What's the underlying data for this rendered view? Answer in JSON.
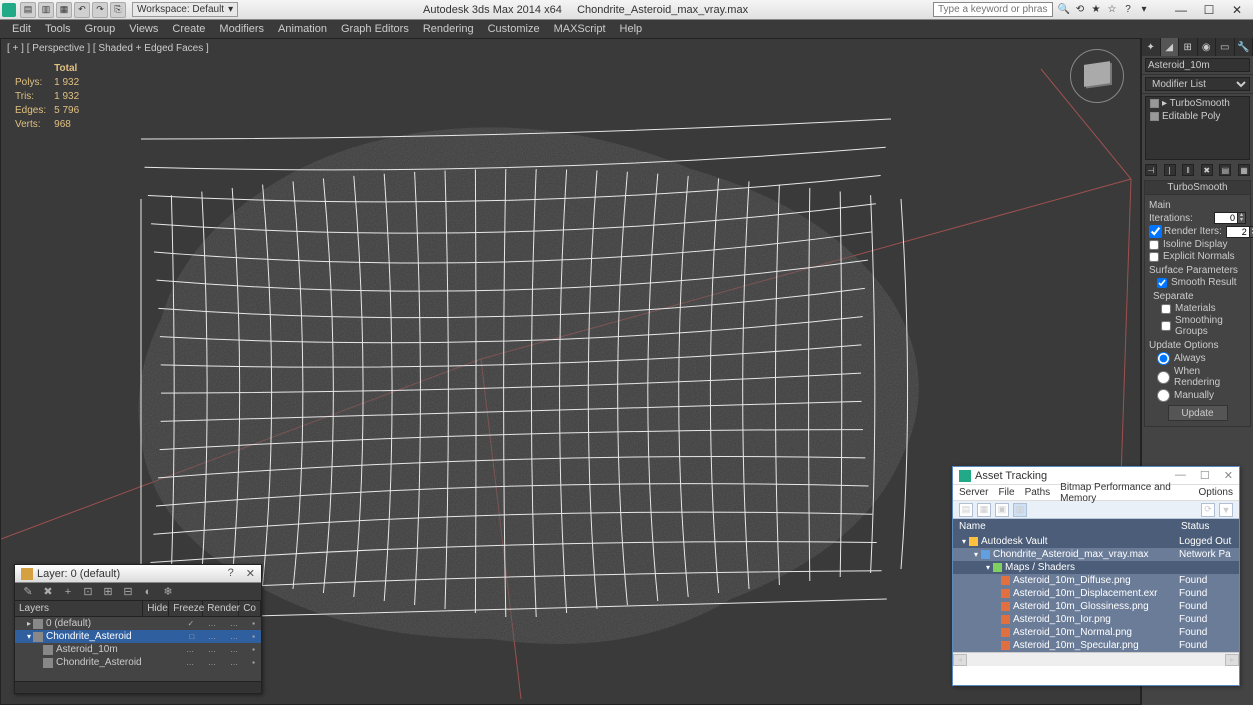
{
  "titlebar": {
    "workspace_label": "Workspace: Default",
    "app_title": "Autodesk 3ds Max  2014 x64",
    "file_name": "Chondrite_Asteroid_max_vray.max",
    "search_placeholder": "Type a keyword or phrase"
  },
  "menubar": [
    "Edit",
    "Tools",
    "Group",
    "Views",
    "Create",
    "Modifiers",
    "Animation",
    "Graph Editors",
    "Rendering",
    "Customize",
    "MAXScript",
    "Help"
  ],
  "viewport": {
    "label": "[ + ] [ Perspective ] [ Shaded + Edged Faces ]",
    "stats_header": "Total",
    "stats": [
      {
        "k": "Polys:",
        "v": "1 932"
      },
      {
        "k": "Tris:",
        "v": "1 932"
      },
      {
        "k": "Edges:",
        "v": "5 796"
      },
      {
        "k": "Verts:",
        "v": "968"
      }
    ]
  },
  "cmdpanel": {
    "object_name": "Asteroid_10m",
    "modifier_list_label": "Modifier List",
    "stack": [
      "TurboSmooth",
      "Editable Poly"
    ],
    "rollout_title": "TurboSmooth",
    "main_label": "Main",
    "iterations_label": "Iterations:",
    "iterations_value": "0",
    "render_iters_label": "Render Iters:",
    "render_iters_value": "2",
    "render_iters_checked": true,
    "isoline_label": "Isoline Display",
    "explicit_normals_label": "Explicit Normals",
    "surface_params_label": "Surface Parameters",
    "smooth_result_label": "Smooth Result",
    "smooth_result_checked": true,
    "separate_label": "Separate",
    "materials_label": "Materials",
    "smoothing_groups_label": "Smoothing Groups",
    "update_options_label": "Update Options",
    "update_always": "Always",
    "update_rendering": "When Rendering",
    "update_manually": "Manually",
    "update_button": "Update"
  },
  "layer_win": {
    "title": "Layer: 0 (default)",
    "columns": [
      "Layers",
      "Hide",
      "Freeze",
      "Render",
      "Co"
    ],
    "rows": [
      {
        "indent": 0,
        "label": "0 (default)",
        "tri": "▸",
        "selected": false,
        "check": "✓"
      },
      {
        "indent": 0,
        "label": "Chondrite_Asteroid",
        "tri": "▾",
        "selected": true,
        "check": "□"
      },
      {
        "indent": 1,
        "label": "Asteroid_10m",
        "tri": "",
        "selected": false,
        "check": ""
      },
      {
        "indent": 1,
        "label": "Chondrite_Asteroid",
        "tri": "",
        "selected": false,
        "check": ""
      }
    ]
  },
  "asset_win": {
    "title": "Asset Tracking",
    "menu": [
      "Server",
      "File",
      "Paths",
      "Bitmap Performance and Memory",
      "Options"
    ],
    "col_name": "Name",
    "col_status": "Status",
    "rows": [
      {
        "indent": 0,
        "tri": "▾",
        "label": "Autodesk Vault",
        "status": "Logged Out",
        "shade": "dark",
        "ico": "#ffc040"
      },
      {
        "indent": 1,
        "tri": "▾",
        "label": "Chondrite_Asteroid_max_vray.max",
        "status": "Network Pa",
        "shade": "light",
        "ico": "#60a0e0"
      },
      {
        "indent": 2,
        "tri": "▾",
        "label": "Maps / Shaders",
        "status": "",
        "shade": "dark",
        "ico": "#80d060"
      },
      {
        "indent": 3,
        "tri": "",
        "label": "Asteroid_10m_Diffuse.png",
        "status": "Found",
        "shade": "light",
        "ico": "#e07040"
      },
      {
        "indent": 3,
        "tri": "",
        "label": "Asteroid_10m_Displacement.exr",
        "status": "Found",
        "shade": "light",
        "ico": "#e07040"
      },
      {
        "indent": 3,
        "tri": "",
        "label": "Asteroid_10m_Glossiness.png",
        "status": "Found",
        "shade": "light",
        "ico": "#e07040"
      },
      {
        "indent": 3,
        "tri": "",
        "label": "Asteroid_10m_Ior.png",
        "status": "Found",
        "shade": "light",
        "ico": "#e07040"
      },
      {
        "indent": 3,
        "tri": "",
        "label": "Asteroid_10m_Normal.png",
        "status": "Found",
        "shade": "light",
        "ico": "#e07040"
      },
      {
        "indent": 3,
        "tri": "",
        "label": "Asteroid_10m_Specular.png",
        "status": "Found",
        "shade": "light",
        "ico": "#e07040"
      }
    ]
  },
  "colors": {
    "bg": "#3a3a3a",
    "panel": "#444444",
    "accent": "#2f5f9f",
    "stats_text": "#e0c080"
  }
}
